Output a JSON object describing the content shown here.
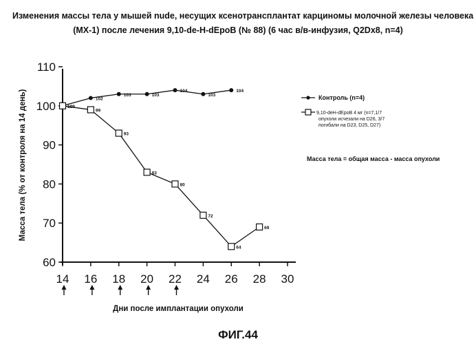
{
  "chart_data": {
    "type": "line",
    "title_lines": [
      "Изменения массы тела у мышей nude, несущих ксенотрансплантат карциномы молочной железы человека",
      "(MX-1) после лечения 9,10-de-H-dEpoB (№ 88) (6 час в/в-инфузия, Q2Dx8, n=4)"
    ],
    "xlabel": "Дни после имплантации опухоли",
    "ylabel": "Масса тела (% от контроля на 14 день)",
    "xlim": [
      14,
      30
    ],
    "ylim": [
      60,
      110
    ],
    "x_ticks": [
      "14",
      "16",
      "18",
      "20",
      "22",
      "24",
      "26",
      "28",
      "30"
    ],
    "y_ticks": [
      "60",
      "70",
      "80",
      "90",
      "100",
      "110"
    ],
    "dosing_days": [
      14,
      16,
      18,
      20,
      22
    ],
    "series": [
      {
        "name": "Контроль (n=4)",
        "marker": "filled-circle",
        "x": [
          14,
          16,
          18,
          20,
          22,
          24,
          26
        ],
        "values": [
          100,
          102,
          103,
          103,
          104,
          103,
          104
        ],
        "labels": [
          "100",
          "102",
          "103",
          "103",
          "104",
          "103",
          "104"
        ]
      },
      {
        "name": "9,10-deH-dEpoB 4 мг (n=7,1/7",
        "name_continued": [
          "опухоли исчезали на D26, 3/7",
          "погибали на D23, D25, D27)"
        ],
        "marker": "open-square",
        "x": [
          14,
          16,
          18,
          20,
          22,
          24,
          26,
          28
        ],
        "values": [
          100,
          99,
          93,
          83,
          80,
          72,
          64,
          69
        ],
        "labels": [
          "100",
          "99",
          "93",
          "83",
          "80",
          "72",
          "64",
          "69"
        ]
      }
    ],
    "note": "Масса тела = общая масса - масса опухоли",
    "figure_label": "ФИГ.44",
    "colors": {
      "line": "#111111",
      "background": "#ffffff",
      "marker_fill_open": "#ffffff"
    }
  }
}
